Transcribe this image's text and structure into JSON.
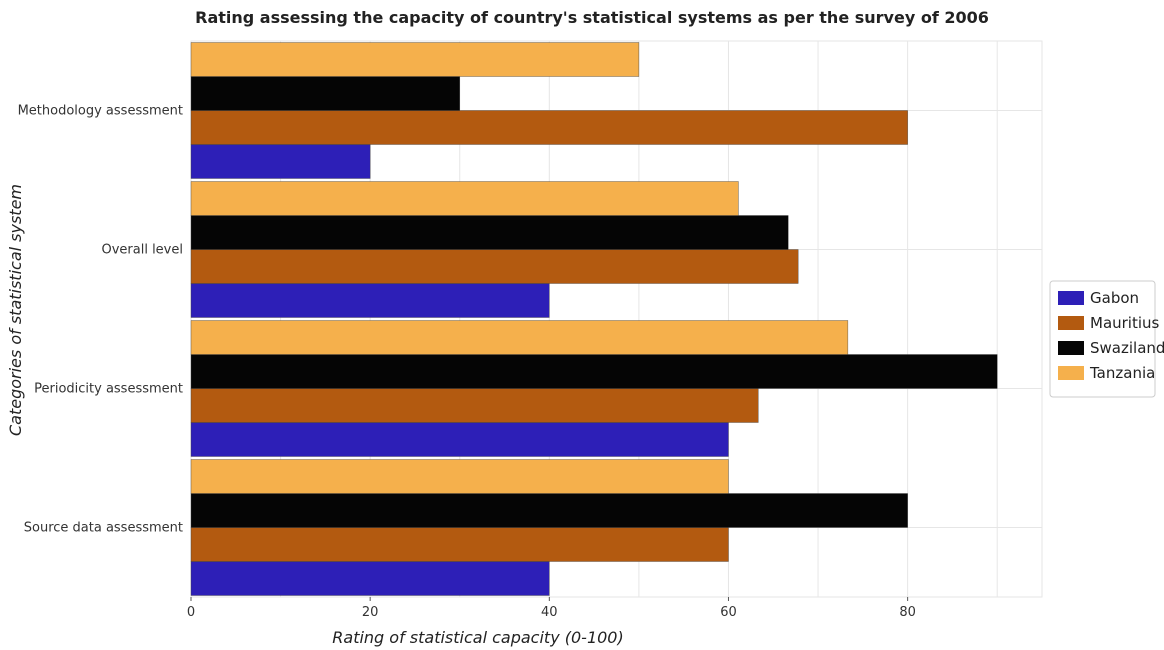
{
  "chart_data": {
    "type": "bar",
    "orientation": "horizontal",
    "title": "Rating assessing the capacity of country's statistical systems as per the survey of 2006",
    "xlabel": "Rating of statistical capacity (0-100)",
    "ylabel": "Categories of statistical system",
    "xlim": [
      0,
      95
    ],
    "xticks": [
      0,
      20,
      40,
      60,
      80
    ],
    "categories": [
      "Methodology assessment",
      "Overall level",
      "Periodicity assessment",
      "Source data assessment"
    ],
    "series": [
      {
        "name": "Gabon",
        "color": "#2d1fb7",
        "values": [
          20,
          40,
          60,
          40
        ]
      },
      {
        "name": "Mauritius",
        "color": "#b35a10",
        "values": [
          80,
          67.78,
          63.33,
          60
        ]
      },
      {
        "name": "Swaziland",
        "color": "#050505",
        "values": [
          30,
          66.67,
          90,
          80
        ]
      },
      {
        "name": "Tanzania",
        "color": "#f5b04c",
        "values": [
          50,
          61.11,
          73.33,
          60
        ]
      }
    ],
    "grid": true,
    "legend_position": "right"
  }
}
